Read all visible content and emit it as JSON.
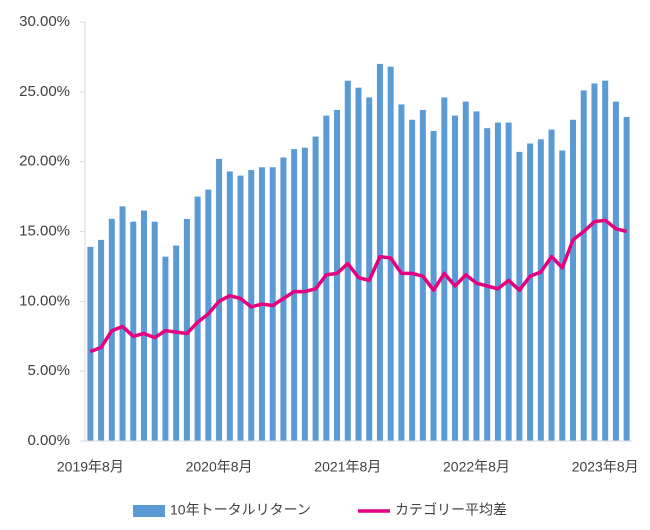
{
  "chart_data": {
    "type": "bar",
    "categories": [
      "2019年8月",
      null,
      null,
      null,
      null,
      null,
      null,
      null,
      null,
      null,
      null,
      null,
      "2020年8月",
      null,
      null,
      null,
      null,
      null,
      null,
      null,
      null,
      null,
      null,
      null,
      "2021年8月",
      null,
      null,
      null,
      null,
      null,
      null,
      null,
      null,
      null,
      null,
      null,
      "2022年8月",
      null,
      null,
      null,
      null,
      null,
      null,
      null,
      null,
      null,
      null,
      null,
      "2023年8月",
      null,
      null
    ],
    "series": [
      {
        "name": "10年トータルリターン",
        "type": "bar",
        "color": "#5b9bd5",
        "values": [
          13.9,
          14.4,
          15.9,
          16.8,
          15.7,
          16.5,
          15.7,
          13.2,
          14.0,
          15.9,
          17.5,
          18.0,
          20.2,
          19.3,
          19.0,
          19.4,
          19.6,
          19.6,
          20.3,
          20.9,
          21.0,
          21.8,
          23.3,
          23.7,
          25.8,
          25.3,
          24.6,
          27.0,
          26.8,
          24.1,
          23.0,
          23.7,
          22.2,
          24.6,
          23.3,
          24.3,
          23.6,
          22.4,
          22.8,
          22.8,
          20.7,
          21.3,
          21.6,
          22.3,
          20.8,
          23.0,
          25.1,
          25.6,
          25.8,
          24.3,
          23.2
        ]
      },
      {
        "name": "カテゴリー平均差",
        "type": "line",
        "color": "#e4007f",
        "values": [
          6.4,
          6.7,
          7.9,
          8.2,
          7.5,
          7.7,
          7.4,
          7.9,
          7.8,
          7.7,
          8.5,
          9.1,
          10.0,
          10.4,
          10.2,
          9.6,
          9.8,
          9.7,
          10.2,
          10.7,
          10.7,
          10.9,
          11.9,
          12.0,
          12.7,
          11.7,
          11.5,
          13.2,
          13.1,
          12.0,
          12.0,
          11.8,
          10.8,
          12.0,
          11.1,
          11.9,
          11.3,
          11.1,
          10.9,
          11.5,
          10.8,
          11.8,
          12.1,
          13.2,
          12.4,
          14.4,
          15.0,
          15.7,
          15.8,
          15.2,
          15.0
        ]
      }
    ],
    "ylim": [
      0,
      30
    ],
    "yticks": [
      {
        "value": 0,
        "label": "0.00%"
      },
      {
        "value": 5,
        "label": "5.00%"
      },
      {
        "value": 10,
        "label": "10.00%"
      },
      {
        "value": 15,
        "label": "15.00%"
      },
      {
        "value": 20,
        "label": "20.00%"
      },
      {
        "value": 25,
        "label": "25.00%"
      },
      {
        "value": 30,
        "label": "30.00%"
      }
    ],
    "grid": false,
    "legend": "bottom"
  }
}
